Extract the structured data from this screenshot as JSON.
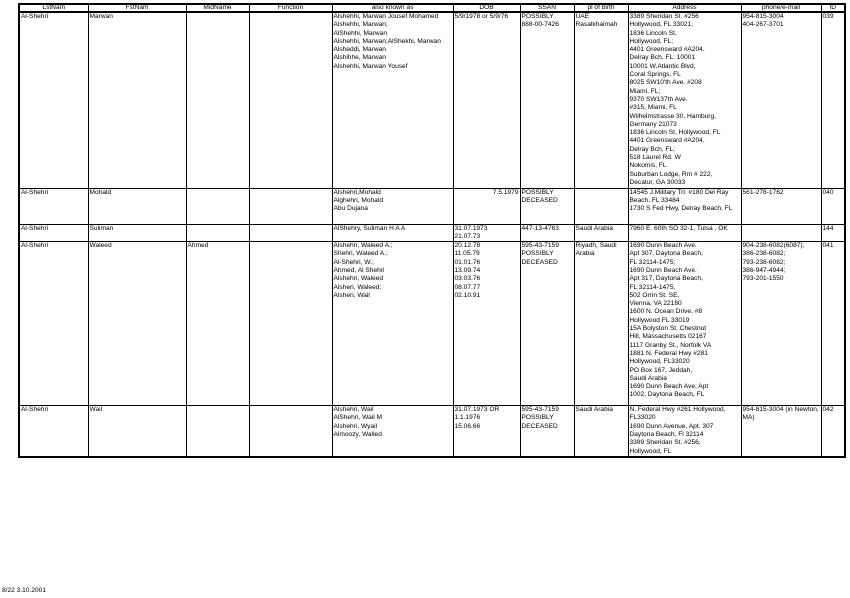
{
  "columns": [
    "LstNam",
    "FstNam",
    "MidName",
    "Function",
    "also known as",
    "DOB",
    "SSAN",
    "pl of birth",
    "Address",
    "phone/e-mail",
    "ID"
  ],
  "rows": [
    {
      "cells": [
        [
          "Al-Shehri"
        ],
        [
          "Marwan"
        ],
        [],
        [],
        [
          "Alshehhi, Marwan Jousef Mohamed",
          "Alshehhi, Marwan;",
          "AlShehhi, Marwan",
          "Alshehhi, Marwan;AlShekhi, Marwan",
          "Alsheddi, Marwan",
          "Alshihhe, Marwan",
          "Alshehhi, Marwan Yousef"
        ],
        [
          "5/9/1978 or 5/9/76"
        ],
        [
          "POSSIBLY",
          "888-00-7426"
        ],
        [
          "UAE",
          "Rasalkhaimah"
        ],
        [
          "3389 Sheridan St. #256",
          " Hollywood, FL 33021;",
          "1836 Lincoln St,",
          "Hollywood, FL;",
          "4401  Greensward #A204,",
          "Delray Bch, FL; 10001",
          "10001 W.Atlantic Blvd,",
          "Coral Springs, FL",
          "8025 SW10'th Ave. #208",
          "Miami, FL;",
          "9370 SW137th Ave.",
          "#315, Miami, FL",
          "Wilhelmstrasse 30, Hamburg,",
          "Germany 21073",
          "1836 Lincoln St, Hollywood, FL",
          "4401  Greensward #A204,",
          "Delray Bch, FL;",
          "518 Laurel Rd. W",
          "Nokomis, FL",
          "Suburban Lodge, Rm # 222,",
          "Decatur, GA 30033"
        ],
        [
          "954-815-3004",
          "404-267-3701"
        ],
        [
          "039"
        ]
      ]
    },
    {
      "cells": [
        [
          "Al-Shehri"
        ],
        [
          "Mohald"
        ],
        [],
        [],
        [
          "Alshehri,Mohald",
          "Alghehri, Mohald",
          "Abu Dujana"
        ],
        [
          "7.5.1979"
        ],
        [
          "POSSIBLY",
          "DECEASED"
        ],
        [],
        [
          "14545 J.Military Trl. #180  Del Ray",
          "Beach, FL 33484",
          "1730 S Fed Hwy, Delray Beach, FL"
        ],
        [
          "561-278-1762"
        ],
        [
          "040"
        ]
      ]
    },
    {
      "cells": [
        [
          "Al-Shehri"
        ],
        [
          "Suliman"
        ],
        [],
        [],
        [
          "AlShehry, Suliman H A A"
        ],
        [
          "31.07.1973",
          "21.07.73"
        ],
        [
          "447-13-4763"
        ],
        [
          "Saudi Arabia"
        ],
        [
          "7960 E. 60th SO 32-1, Tulsa , OK"
        ],
        [],
        [
          "144"
        ]
      ]
    },
    {
      "cells": [
        [
          "Al-Shehri"
        ],
        [
          "Waleed"
        ],
        [
          "Ahmed"
        ],
        [],
        [
          "Alshehri, Waleed A.;",
          "Shehri, Waleed A.;",
          "Al-Shehri, W.;",
          "Ahmed, Al Shehri",
          "Alshehri, Waleed",
          "Alsheri, Waleed;",
          "Alsheri, Wail"
        ],
        [
          "20.12.78",
          "11.05.79",
          "01.01.76",
          "13.09.74",
          "03.03.76",
          "08.07.77",
          "02.10.91"
        ],
        [
          "595-43-7159",
          "POSSIBLY",
          "DECEASED"
        ],
        [
          "Riyadh, Saudi",
          "Arabia"
        ],
        [
          "1690 Dunn Beach Ave.",
          "Apt 307, Daytona Beach,",
          "FL 32114-1475;",
          "1690 Dunn Beach Ave.",
          "Apt 317, Daytona Beach,",
          "FL 32114-1475,",
          "502 Orrin St. SE,",
          "Vienna, VA 22180",
          "1600 N. Ocean Drive, #8",
          "Hollywood FL 33019",
          "15A Bolyston St.   Chestnut",
          "Hill, Massachusetts 02167",
          "1117 Granby St., Norfolk VA",
          "1881 N. Federal Hwy #281",
          "Hollywood, FL33020",
          "PO Box 167, Jeddah,",
          "Saudi Arabia",
          "1690 Dunn Beach Ave, Apt",
          "1002, Daytona Beach, FL"
        ],
        [
          "904-238-6082(6087);",
          "386-238-6082;",
          "793-238-6082;",
          "386-947-4944;",
          "793-201-1550"
        ],
        [
          "041"
        ]
      ]
    },
    {
      "cells": [
        [
          "Al-Shehri"
        ],
        [
          "Wail"
        ],
        [],
        [],
        [
          "Alshehri, Wail",
          "AlShehri, Wail M",
          "Alshehri, Wyail",
          "Almoozy, Walled"
        ],
        [
          "31.07.1973 OR",
          "1.1.1976",
          "15.06.66"
        ],
        [
          "595-43-7159",
          "POSSIBLY",
          "DECEASED"
        ],
        [
          "Saudi Arabia"
        ],
        [
          "N. Federal Hwy #261   Hollywood,",
          "FL33020",
          "1690 Dunn Avenue, Apt. 307",
          "Daytona Beach, Fl 32114",
          "3389 Sheridan St. #256,",
          "Hollywood, FL"
        ],
        [
          "954-815-3004 (in Newton,",
          "MA)"
        ],
        [
          "042"
        ]
      ]
    }
  ],
  "footer": "8/22  3.10.2001"
}
